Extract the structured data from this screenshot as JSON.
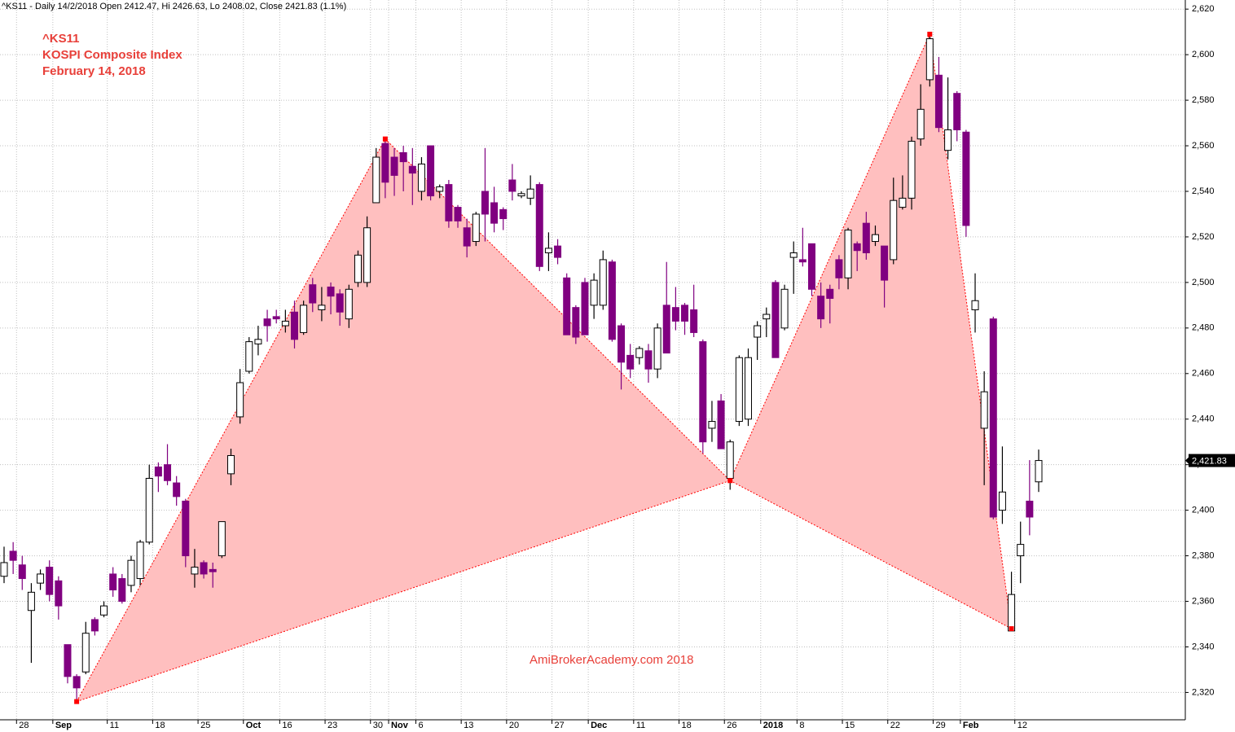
{
  "chart_data": {
    "type": "candlestick",
    "header": "^KS11 - Daily 14/2/2018 Open 2412.47, Hi 2426.63, Lo 2408.02, Close 2421.83 (1.1%)",
    "annotations": [
      "^KS11",
      "KOSPI Composite Index",
      "February 14, 2018"
    ],
    "watermark": "AmiBrokerAcademy.com  2018",
    "categories": [
      null,
      null,
      "28",
      null,
      null,
      null,
      "Sep",
      null,
      null,
      null,
      null,
      null,
      "11",
      null,
      null,
      null,
      null,
      "18",
      null,
      null,
      null,
      null,
      "25",
      null,
      null,
      null,
      null,
      "Oct",
      null,
      null,
      null,
      "16",
      null,
      null,
      null,
      null,
      "23",
      null,
      null,
      null,
      null,
      "30",
      null,
      "Nov",
      null,
      null,
      "6",
      null,
      null,
      null,
      null,
      "13",
      null,
      null,
      null,
      null,
      "20",
      null,
      null,
      null,
      null,
      "27",
      null,
      null,
      null,
      "Dec",
      null,
      null,
      null,
      null,
      "11",
      null,
      null,
      null,
      null,
      "18",
      null,
      null,
      null,
      null,
      "26",
      null,
      null,
      null,
      "2018",
      null,
      null,
      null,
      "8",
      null,
      null,
      null,
      null,
      "15",
      null,
      null,
      null,
      null,
      "22",
      null,
      null,
      null,
      null,
      "29",
      null,
      null,
      "Feb",
      null,
      null,
      null,
      null,
      null,
      "12",
      null,
      null
    ],
    "open": [
      2371,
      2382,
      2376,
      2356,
      2368,
      2375,
      2369,
      2341,
      2327,
      2329,
      2352,
      2354,
      2372,
      2370,
      2367,
      2370,
      2386,
      2419,
      2420,
      2412,
      2404,
      2372,
      2377,
      2374,
      2380,
      2416,
      2441,
      2461,
      2473,
      2484,
      2485,
      2481,
      2487,
      2478,
      2499,
      2488,
      2498,
      2495,
      2484,
      2500,
      2500,
      2535,
      2561,
      2555,
      2557,
      2551,
      2540,
      2560,
      2540,
      2543,
      2533,
      2524,
      2518,
      2540,
      2535,
      2532,
      2545,
      2538,
      2537,
      2543,
      2513,
      2516,
      2502,
      2489,
      2500,
      2490,
      2490,
      2509,
      2481,
      2468,
      2467,
      2470,
      2462,
      2490,
      2489,
      2490,
      2488,
      2474,
      2436,
      2448,
      2414,
      2439,
      2440,
      2476,
      2484,
      2500,
      2480,
      2511,
      2510,
      2517,
      2494,
      2497,
      2510,
      2502,
      2517,
      2526,
      2518,
      2516,
      2510,
      2533,
      2537,
      2563,
      2589,
      2591,
      2558,
      2583,
      2566,
      2488,
      2436,
      2484,
      2400,
      2347,
      2380,
      2404,
      2412.47
    ],
    "high": [
      2384,
      2386,
      2380,
      2368,
      2374,
      2378,
      2371,
      2341,
      2328,
      2351,
      2353,
      2360,
      2375,
      2372,
      2380,
      2387,
      2420,
      2421,
      2429,
      2415,
      2405,
      2383,
      2378,
      2377,
      2395,
      2427,
      2462,
      2476,
      2481,
      2488,
      2488,
      2488,
      2492,
      2492,
      2502,
      2498,
      2500,
      2497,
      2499,
      2514,
      2529,
      2559,
      2563,
      2559,
      2560,
      2559,
      2555,
      2560,
      2543,
      2545,
      2534,
      2528,
      2531,
      2559,
      2542,
      2533,
      2552,
      2540,
      2547,
      2544,
      2522,
      2519,
      2504,
      2490,
      2502,
      2504,
      2514,
      2510,
      2482,
      2473,
      2472,
      2473,
      2482,
      2509,
      2498,
      2491,
      2499,
      2475,
      2448,
      2451,
      2431,
      2468,
      2471,
      2483,
      2489,
      2501,
      2499,
      2518,
      2524,
      2517,
      2500,
      2499,
      2512,
      2524,
      2518,
      2531,
      2525,
      2516,
      2546,
      2547,
      2564,
      2587,
      2609,
      2599,
      2590,
      2584,
      2567,
      2504,
      2461,
      2485,
      2428,
      2373,
      2395,
      2422,
      2426.63
    ],
    "low": [
      2368,
      2372,
      2365,
      2333,
      2365,
      2360,
      2352,
      2324,
      2316,
      2328,
      2345,
      2353,
      2362,
      2359,
      2364,
      2367,
      2385,
      2408,
      2411,
      2402,
      2375,
      2366,
      2370,
      2366,
      2379,
      2411,
      2438,
      2460,
      2468,
      2474,
      2482,
      2478,
      2471,
      2477,
      2487,
      2483,
      2486,
      2481,
      2480,
      2498,
      2498,
      2535,
      2537,
      2538,
      2540,
      2534,
      2536,
      2536,
      2537,
      2524,
      2524,
      2511,
      2516,
      2518,
      2522,
      2523,
      2536,
      2537,
      2534,
      2505,
      2505,
      2508,
      2477,
      2473,
      2477,
      2484,
      2488,
      2474,
      2453,
      2458,
      2464,
      2456,
      2458,
      2469,
      2479,
      2477,
      2476,
      2425,
      2430,
      2427,
      2409,
      2437,
      2437,
      2466,
      2476,
      2467,
      2479,
      2495,
      2507,
      2494,
      2480,
      2482,
      2497,
      2497,
      2505,
      2510,
      2516,
      2489,
      2508,
      2532,
      2532,
      2560,
      2586,
      2566,
      2554,
      2562,
      2520,
      2478,
      2411,
      2396,
      2394,
      2347,
      2368,
      2389,
      2408.02
    ],
    "close": [
      2377,
      2378,
      2370,
      2364,
      2372,
      2363,
      2358,
      2327,
      2322,
      2346,
      2347,
      2358,
      2365,
      2360,
      2378,
      2386,
      2414,
      2415,
      2413,
      2406,
      2380,
      2375,
      2372,
      2373,
      2395,
      2424,
      2456,
      2474,
      2475,
      2481,
      2484,
      2483,
      2475,
      2490,
      2491,
      2490,
      2494,
      2487,
      2497,
      2512,
      2524,
      2555,
      2544,
      2547,
      2553,
      2548,
      2552,
      2538,
      2542,
      2527,
      2527,
      2516,
      2530,
      2530,
      2526,
      2528,
      2540,
      2539,
      2541,
      2507,
      2515,
      2511,
      2477,
      2476,
      2477,
      2501,
      2510,
      2475,
      2465,
      2462,
      2471,
      2462,
      2480,
      2469,
      2483,
      2483,
      2478,
      2430,
      2439,
      2427,
      2430,
      2467,
      2467,
      2481,
      2486,
      2467,
      2497,
      2513,
      2509,
      2497,
      2484,
      2493,
      2502,
      2523,
      2514,
      2513,
      2521,
      2501,
      2536,
      2537,
      2562,
      2576,
      2607,
      2568,
      2567,
      2567,
      2525,
      2492,
      2452,
      2397,
      2408,
      2363,
      2385,
      2397,
      2421.83
    ],
    "up_color": "#ffffff",
    "down_color": "#800080",
    "pattern": {
      "indices": [
        8,
        42,
        80,
        102,
        111
      ],
      "values": [
        2316,
        2563,
        2413,
        2609,
        2348
      ],
      "color": "#ff0000",
      "fill": "#ffbfbf"
    },
    "last_label": {
      "value": 2421.83,
      "label": "2,421.83"
    },
    "ylim": [
      2308,
      2624
    ],
    "yticks": [
      {
        "value": 2320,
        "label": "2,320"
      },
      {
        "value": 2340,
        "label": "2,340"
      },
      {
        "value": 2360,
        "label": "2,360"
      },
      {
        "value": 2380,
        "label": "2,380"
      },
      {
        "value": 2400,
        "label": "2,400"
      },
      {
        "value": 2420,
        "label": "2,420"
      },
      {
        "value": 2440,
        "label": "2,440"
      },
      {
        "value": 2460,
        "label": "2,460"
      },
      {
        "value": 2480,
        "label": "2,480"
      },
      {
        "value": 2500,
        "label": "2,500"
      },
      {
        "value": 2520,
        "label": "2,520"
      },
      {
        "value": 2540,
        "label": "2,540"
      },
      {
        "value": 2560,
        "label": "2,560"
      },
      {
        "value": 2580,
        "label": "2,580"
      },
      {
        "value": 2600,
        "label": "2,600"
      },
      {
        "value": 2620,
        "label": "2,620"
      }
    ],
    "grid": true
  }
}
